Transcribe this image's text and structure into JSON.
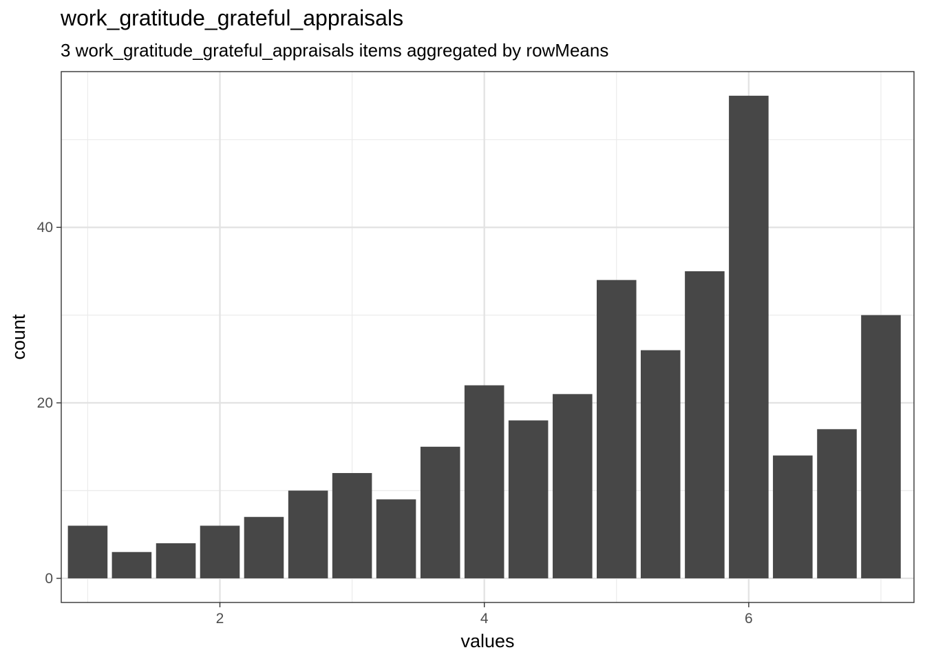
{
  "chart_data": {
    "type": "bar",
    "title": "work_gratitude_grateful_appraisals",
    "subtitle": "3 work_gratitude_grateful_appraisals items aggregated by rowMeans",
    "xlabel": "values",
    "ylabel": "count",
    "bin_width": 0.333,
    "x": [
      1.0,
      1.333,
      1.667,
      2.0,
      2.333,
      2.667,
      3.0,
      3.333,
      3.667,
      4.0,
      4.333,
      4.667,
      5.0,
      5.333,
      5.667,
      6.0,
      6.333,
      6.667,
      7.0
    ],
    "values": [
      6,
      3,
      4,
      6,
      7,
      10,
      12,
      9,
      15,
      22,
      18,
      21,
      34,
      26,
      35,
      55,
      14,
      17,
      30
    ],
    "xlim": [
      0.8,
      7.25
    ],
    "ylim": [
      -2.75,
      57.75
    ],
    "x_ticks": [
      2,
      4,
      6
    ],
    "y_ticks": [
      0,
      20,
      40
    ],
    "bar_color": "#474747",
    "grid": true,
    "theme": "bw"
  }
}
